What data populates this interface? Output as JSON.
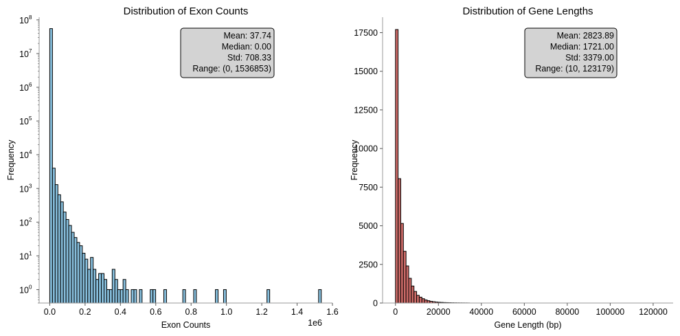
{
  "chart_data": [
    {
      "type": "bar",
      "title": "Distribution of Exon Counts",
      "xlabel": "Exon Counts",
      "ylabel": "Frequency",
      "x_offset_label": "1e6",
      "yscale": "log",
      "xlim": [
        -60000,
        1600000
      ],
      "ylim": [
        0.4,
        120000000
      ],
      "xticks": [
        0,
        0.2,
        0.4,
        0.6,
        0.8,
        1.0,
        1.2,
        1.4,
        1.6
      ],
      "xtick_labels": [
        "0.0",
        "0.2",
        "0.4",
        "0.6",
        "0.8",
        "1.0",
        "1.2",
        "1.4",
        "1.6"
      ],
      "yticks": [
        1,
        10,
        100,
        1000,
        10000,
        100000,
        1000000,
        10000000,
        100000000
      ],
      "ytick_labels": [
        {
          "base": "10",
          "exp": "0"
        },
        {
          "base": "10",
          "exp": "1"
        },
        {
          "base": "10",
          "exp": "2"
        },
        {
          "base": "10",
          "exp": "3"
        },
        {
          "base": "10",
          "exp": "4"
        },
        {
          "base": "10",
          "exp": "5"
        },
        {
          "base": "10",
          "exp": "6"
        },
        {
          "base": "10",
          "exp": "7"
        },
        {
          "base": "10",
          "exp": "8"
        }
      ],
      "color": "#87bfdd",
      "bin_width": 15368.53,
      "bins": [
        [
          0,
          55000000
        ],
        [
          1,
          4000
        ],
        [
          2,
          1300
        ],
        [
          3,
          650
        ],
        [
          4,
          400
        ],
        [
          5,
          200
        ],
        [
          6,
          120
        ],
        [
          7,
          80
        ],
        [
          8,
          50
        ],
        [
          9,
          35
        ],
        [
          10,
          25
        ],
        [
          11,
          20
        ],
        [
          12,
          12
        ],
        [
          13,
          8
        ],
        [
          14,
          4
        ],
        [
          15,
          9
        ],
        [
          16,
          4
        ],
        [
          17,
          2
        ],
        [
          18,
          3
        ],
        [
          19,
          3
        ],
        [
          20,
          2
        ],
        [
          21,
          1
        ],
        [
          22,
          1
        ],
        [
          23,
          4
        ],
        [
          24,
          2
        ],
        [
          25,
          1
        ],
        [
          26,
          1
        ],
        [
          27,
          2
        ],
        [
          28,
          1
        ],
        [
          30,
          1
        ],
        [
          31,
          1
        ],
        [
          33,
          1
        ],
        [
          37,
          1
        ],
        [
          38,
          1
        ],
        [
          42,
          1
        ],
        [
          49,
          1
        ],
        [
          53,
          1
        ],
        [
          61,
          1
        ],
        [
          64,
          1
        ],
        [
          80,
          1
        ],
        [
          99,
          1
        ]
      ],
      "stats": [
        "Mean: 37.74",
        "Median: 0.00",
        "Std: 708.33",
        "Range: (0, 1536853)"
      ]
    },
    {
      "type": "bar",
      "title": "Distribution of Gene Lengths",
      "xlabel": "Gene Length (bp)",
      "ylabel": "Frequency",
      "yscale": "linear",
      "xlim": [
        -6000,
        129300
      ],
      "ylim": [
        0,
        18500
      ],
      "xticks": [
        0,
        20000,
        40000,
        60000,
        80000,
        100000,
        120000
      ],
      "xtick_labels": [
        "0",
        "20000",
        "40000",
        "60000",
        "80000",
        "100000",
        "120000"
      ],
      "yticks": [
        0,
        2500,
        5000,
        7500,
        10000,
        12500,
        15000,
        17500
      ],
      "ytick_labels": [
        "0",
        "2500",
        "5000",
        "7500",
        "10000",
        "12500",
        "15000",
        "17500"
      ],
      "color": "#cd6b68",
      "bin_width": 1231.69,
      "bins": [
        [
          0,
          17700
        ],
        [
          1,
          8050
        ],
        [
          2,
          5150
        ],
        [
          3,
          3350
        ],
        [
          4,
          2400
        ],
        [
          5,
          1600
        ],
        [
          6,
          1100
        ],
        [
          7,
          750
        ],
        [
          8,
          500
        ],
        [
          9,
          380
        ],
        [
          10,
          280
        ],
        [
          11,
          200
        ],
        [
          12,
          150
        ],
        [
          13,
          110
        ],
        [
          14,
          85
        ],
        [
          15,
          65
        ],
        [
          16,
          50
        ],
        [
          17,
          40
        ],
        [
          18,
          30
        ],
        [
          19,
          25
        ],
        [
          20,
          20
        ],
        [
          21,
          15
        ],
        [
          22,
          12
        ],
        [
          23,
          10
        ],
        [
          24,
          8
        ],
        [
          25,
          7
        ],
        [
          26,
          6
        ],
        [
          27,
          5
        ]
      ],
      "stats": [
        "Mean: 2823.89",
        "Median: 1721.00",
        "Std: 3379.00",
        "Range: (10, 123179)"
      ]
    }
  ]
}
